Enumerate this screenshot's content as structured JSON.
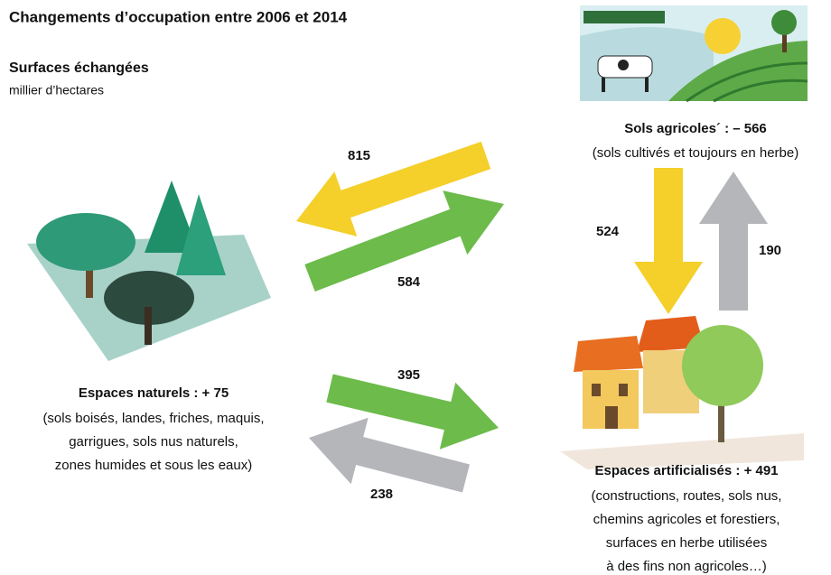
{
  "header": {
    "title": "Changements d’occupation entre 2006 et 2014",
    "subtitle": "Surfaces échangées",
    "unit": "millier d’hectares"
  },
  "nodes": [
    {
      "label": "Sols agricoles´ : – 566",
      "description": [
        "(sols cultivés et toujours en herbe)"
      ]
    },
    {
      "label": "Espaces naturels   : + 75",
      "description": [
        "(sols boisés, landes, friches, maquis,",
        "garrigues, sols nus naturels,",
        "zones humides et sous les eaux)"
      ]
    },
    {
      "label": "Espaces artificialisés : + 491",
      "description": [
        "(constructions, routes, sols nus,",
        "chemins agricoles et forestiers,",
        "surfaces en herbe utilisées",
        "à des fins non agricoles…)"
      ]
    }
  ],
  "flows": [
    815,
    584,
    524,
    190,
    395,
    238
  ]
}
